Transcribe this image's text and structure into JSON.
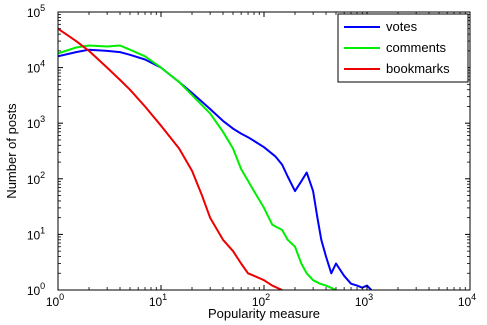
{
  "chart_data": {
    "type": "line",
    "xlabel": "Popularity measure",
    "ylabel": "Number of posts",
    "xscale": "log",
    "yscale": "log",
    "xlim": [
      1,
      10000
    ],
    "ylim": [
      1,
      100000
    ],
    "grid": false,
    "legend_position": "top-right",
    "x_ticks": [
      {
        "value": 1,
        "base": "10",
        "exp": "0"
      },
      {
        "value": 10,
        "base": "10",
        "exp": "1"
      },
      {
        "value": 100,
        "base": "10",
        "exp": "2"
      },
      {
        "value": 1000,
        "base": "10",
        "exp": "3"
      },
      {
        "value": 10000,
        "base": "10",
        "exp": "4"
      }
    ],
    "y_ticks": [
      {
        "value": 1,
        "base": "10",
        "exp": "0"
      },
      {
        "value": 10,
        "base": "10",
        "exp": "1"
      },
      {
        "value": 100,
        "base": "10",
        "exp": "2"
      },
      {
        "value": 1000,
        "base": "10",
        "exp": "3"
      },
      {
        "value": 10000,
        "base": "10",
        "exp": "4"
      },
      {
        "value": 100000,
        "base": "10",
        "exp": "5"
      }
    ],
    "series": [
      {
        "name": "votes",
        "color": "#0000ff",
        "x": [
          1,
          1.5,
          2,
          3,
          4,
          5,
          7,
          10,
          15,
          20,
          30,
          40,
          50,
          60,
          70,
          80,
          100,
          130,
          150,
          170,
          200,
          230,
          260,
          300,
          330,
          360,
          400,
          450,
          500,
          600,
          700,
          800,
          900,
          1000,
          1100
        ],
        "y": [
          16000,
          19000,
          21000,
          20000,
          19000,
          17000,
          14000,
          10000,
          5500,
          3500,
          1800,
          1100,
          800,
          650,
          560,
          480,
          370,
          250,
          180,
          110,
          60,
          90,
          130,
          60,
          20,
          8,
          4,
          2,
          3,
          1.8,
          1.3,
          1.2,
          1.1,
          1.2,
          1
        ]
      },
      {
        "name": "comments",
        "color": "#00ee00",
        "x": [
          1,
          1.5,
          2,
          3,
          4,
          5,
          7,
          10,
          15,
          20,
          30,
          40,
          50,
          60,
          80,
          100,
          120,
          150,
          170,
          200,
          230,
          260,
          300,
          350,
          400,
          500
        ],
        "y": [
          18000,
          23000,
          25000,
          24000,
          25000,
          21000,
          16000,
          10000,
          5500,
          3200,
          1500,
          700,
          350,
          150,
          60,
          30,
          15,
          12,
          8,
          6,
          3,
          2,
          1.5,
          1.3,
          1.2,
          1
        ]
      },
      {
        "name": "bookmarks",
        "color": "#ee0000",
        "x": [
          1,
          1.5,
          2,
          3,
          4,
          5,
          7,
          10,
          15,
          20,
          25,
          30,
          40,
          50,
          60,
          70,
          80,
          100,
          120,
          150
        ],
        "y": [
          50000,
          30000,
          20000,
          10000,
          6000,
          4000,
          2000,
          900,
          350,
          140,
          50,
          20,
          8,
          5,
          3,
          2,
          1.8,
          1.5,
          1.2,
          1
        ]
      }
    ]
  }
}
